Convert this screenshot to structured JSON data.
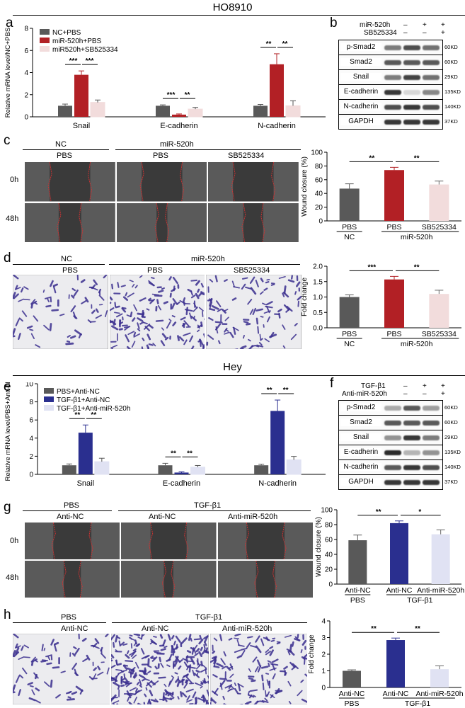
{
  "sections": [
    {
      "title": "HO8910"
    },
    {
      "title": "Hey"
    }
  ],
  "panels": {
    "a": {
      "label": "a",
      "ylabel": "Relative mRNA level/NC+PBS",
      "legend": [
        "NC+PBS",
        "miR-520h+PBS",
        "miR520h+SB525334"
      ],
      "colors": [
        "#595959",
        "#b22025",
        "#f2dcdc"
      ],
      "significance": [
        [
          "***",
          "***"
        ],
        [
          "***",
          "**"
        ],
        [
          "**",
          "**"
        ]
      ]
    },
    "b": {
      "label": "b",
      "header_rows": [
        {
          "name": "miR-520h",
          "marks": [
            "–",
            "+",
            "+"
          ]
        },
        {
          "name": "SB525334",
          "marks": [
            "–",
            "–",
            "+"
          ]
        }
      ],
      "bands": [
        {
          "name": "p-Smad2",
          "kd": "60KD"
        },
        {
          "name": "Smad2",
          "kd": "60KD"
        },
        {
          "name": "Snail",
          "kd": "29KD"
        },
        {
          "name": "E-cadherin",
          "kd": "135KD"
        },
        {
          "name": "N-cadherin",
          "kd": "140KD"
        },
        {
          "name": "GAPDH",
          "kd": "37KD"
        }
      ]
    },
    "c": {
      "label": "c",
      "group_left": "NC",
      "group_right": "miR-520h",
      "columns": [
        "PBS",
        "PBS",
        "SB525334"
      ],
      "rows": [
        "0h",
        "48h"
      ],
      "ylabel": "Wound closure (%)",
      "xcats": [
        "PBS",
        "PBS",
        "SB525334"
      ],
      "xgroups": [
        "NC",
        "miR-520h"
      ],
      "sig": [
        "**",
        "**"
      ]
    },
    "d": {
      "label": "d",
      "group_left": "NC",
      "group_right": "miR-520h",
      "columns": [
        "PBS",
        "PBS",
        "SB525334"
      ],
      "ylabel": "Fold change",
      "xcats": [
        "PBS",
        "PBS",
        "SB525334"
      ],
      "xgroups": [
        "NC",
        "miR-520h"
      ],
      "sig": [
        "***",
        "**"
      ]
    },
    "e": {
      "label": "e",
      "ylabel": "Relative mRNA level/PBS+Anti-NC",
      "legend": [
        "PBS+Anti-NC",
        "TGF-β1+Anti-NC",
        "TGF-β1+Anti-miR-520h"
      ],
      "colors": [
        "#595959",
        "#2a2f8f",
        "#e0e2f3"
      ],
      "significance": [
        [
          "**",
          "**"
        ],
        [
          "**",
          "**"
        ],
        [
          "**",
          "**"
        ]
      ]
    },
    "f": {
      "label": "f",
      "header_rows": [
        {
          "name": "TGF-β1",
          "marks": [
            "–",
            "+",
            "+"
          ]
        },
        {
          "name": "Anti-miR-520h",
          "marks": [
            "–",
            "–",
            "+"
          ]
        }
      ],
      "bands": [
        {
          "name": "p-Smad2",
          "kd": "60KD"
        },
        {
          "name": "Smad2",
          "kd": "60KD"
        },
        {
          "name": "Snail",
          "kd": "29KD"
        },
        {
          "name": "E-cadherin",
          "kd": "135KD"
        },
        {
          "name": "N-cadherin",
          "kd": "140KD"
        },
        {
          "name": "GAPDH",
          "kd": "37KD"
        }
      ]
    },
    "g": {
      "label": "g",
      "group_left": "PBS",
      "group_right": "TGF-β1",
      "columns": [
        "Anti-NC",
        "Anti-NC",
        "Anti-miR-520h"
      ],
      "rows": [
        "0h",
        "48h"
      ],
      "ylabel": "Wound closure (%)",
      "xcats": [
        "Anti-NC",
        "Anti-NC",
        "Anti-miR-520h"
      ],
      "xgroups": [
        "PBS",
        "TGF-β1"
      ],
      "sig": [
        "**",
        "*"
      ]
    },
    "h": {
      "label": "h",
      "group_left": "PBS",
      "group_right": "TGF-β1",
      "columns": [
        "Anti-NC",
        "Anti-NC",
        "Anti-miR-520h"
      ],
      "ylabel": "Fold change",
      "xcats": [
        "Anti-NC",
        "Anti-NC",
        "Anti-miR-520h"
      ],
      "xgroups": [
        "PBS",
        "TGF-β1"
      ],
      "sig": [
        "**",
        "**"
      ]
    }
  },
  "chart_data": [
    {
      "panel": "a",
      "type": "bar",
      "categories": [
        "Snail",
        "E-cadherin",
        "N-cadherin"
      ],
      "ylabel": "Relative mRNA level/NC+PBS",
      "ylim": [
        0,
        8
      ],
      "yticks": [
        0,
        2,
        4,
        6,
        8
      ],
      "series": [
        {
          "name": "NC+PBS",
          "values": [
            1.0,
            1.0,
            1.0
          ],
          "errors": [
            0.15,
            0.08,
            0.12
          ],
          "color": "#595959"
        },
        {
          "name": "miR-520h+PBS",
          "values": [
            3.8,
            0.2,
            4.75
          ],
          "errors": [
            0.35,
            0.06,
            0.95
          ],
          "color": "#b22025"
        },
        {
          "name": "miR520h+SB525334",
          "values": [
            1.3,
            0.7,
            1.0
          ],
          "errors": [
            0.22,
            0.15,
            0.45
          ],
          "color": "#f2dcdc"
        }
      ]
    },
    {
      "panel": "c",
      "type": "bar",
      "categories": [
        "PBS",
        "PBS",
        "SB525334"
      ],
      "ylabel": "Wound closure (%)",
      "ylim": [
        0,
        100
      ],
      "yticks": [
        0,
        20,
        40,
        60,
        80,
        100
      ],
      "values": [
        47,
        74,
        53
      ],
      "errors": [
        7,
        4,
        5
      ],
      "colors": [
        "#595959",
        "#b22025",
        "#f2dcdc"
      ]
    },
    {
      "panel": "d",
      "type": "bar",
      "categories": [
        "PBS",
        "PBS",
        "SB525334"
      ],
      "ylabel": "Fold change",
      "ylim": [
        0,
        2.0
      ],
      "yticks": [
        0.0,
        0.5,
        1.0,
        1.5,
        2.0
      ],
      "values": [
        1.0,
        1.57,
        1.1
      ],
      "errors": [
        0.07,
        0.1,
        0.12
      ],
      "colors": [
        "#595959",
        "#b22025",
        "#f2dcdc"
      ]
    },
    {
      "panel": "e",
      "type": "bar",
      "categories": [
        "Snail",
        "E-cadherin",
        "N-cadherin"
      ],
      "ylabel": "Relative mRNA level/PBS+Anti-NC",
      "ylim": [
        0,
        10
      ],
      "yticks": [
        0,
        2,
        4,
        6,
        8,
        10
      ],
      "series": [
        {
          "name": "PBS+Anti-NC",
          "values": [
            1.0,
            1.0,
            1.0
          ],
          "errors": [
            0.15,
            0.22,
            0.12
          ],
          "color": "#595959"
        },
        {
          "name": "TGF-β1+Anti-NC",
          "values": [
            4.6,
            0.2,
            7.0
          ],
          "errors": [
            0.85,
            0.08,
            1.2
          ],
          "color": "#2a2f8f"
        },
        {
          "name": "TGF-β1+Anti-miR-520h",
          "values": [
            1.4,
            0.8,
            1.6
          ],
          "errors": [
            0.38,
            0.18,
            0.38
          ],
          "color": "#e0e2f3"
        }
      ]
    },
    {
      "panel": "g",
      "type": "bar",
      "categories": [
        "Anti-NC",
        "Anti-NC",
        "Anti-miR-520h"
      ],
      "ylabel": "Wound closure (%)",
      "ylim": [
        0,
        100
      ],
      "yticks": [
        0,
        20,
        40,
        60,
        80,
        100
      ],
      "values": [
        59,
        82,
        67
      ],
      "errors": [
        7,
        3,
        6
      ],
      "colors": [
        "#595959",
        "#2a2f8f",
        "#e0e2f3"
      ]
    },
    {
      "panel": "h",
      "type": "bar",
      "categories": [
        "Anti-NC",
        "Anti-NC",
        "Anti-miR-520h"
      ],
      "ylabel": "Fold change",
      "ylim": [
        0,
        4
      ],
      "yticks": [
        0,
        1,
        2,
        3,
        4
      ],
      "values": [
        1.0,
        2.85,
        1.1
      ],
      "errors": [
        0.06,
        0.12,
        0.2
      ],
      "colors": [
        "#595959",
        "#2a2f8f",
        "#e0e2f3"
      ]
    }
  ]
}
